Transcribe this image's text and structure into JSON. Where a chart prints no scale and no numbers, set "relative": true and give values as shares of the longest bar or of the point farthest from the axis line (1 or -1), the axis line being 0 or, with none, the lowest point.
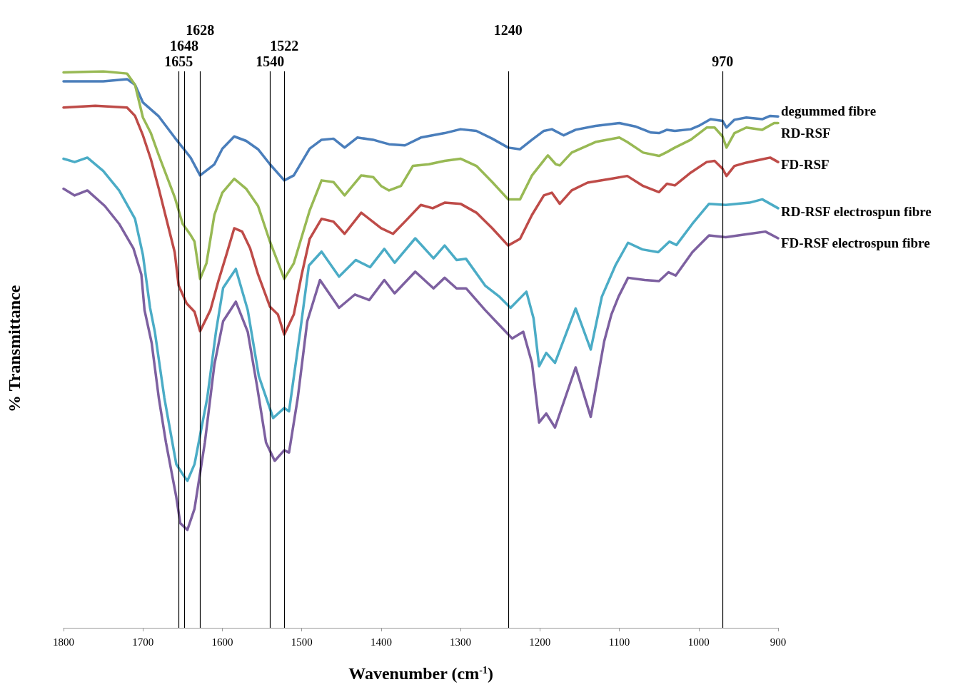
{
  "chart_data": {
    "type": "line",
    "relative": true,
    "xlabel": "Wavenumber (cm$^{-1}$)",
    "ylabel": "% Transmittance",
    "xlim": [
      1800,
      900
    ],
    "xticks": [
      1800,
      1700,
      1600,
      1500,
      1400,
      1300,
      1200,
      1100,
      1000,
      900
    ],
    "series": [
      {
        "name": "degummed fibre",
        "color": "#4a7ebb",
        "x": [
          1800,
          1750,
          1720,
          1710,
          1700,
          1680,
          1660,
          1640,
          1628,
          1610,
          1600,
          1585,
          1570,
          1555,
          1540,
          1522,
          1510,
          1490,
          1475,
          1460,
          1446,
          1430,
          1410,
          1400,
          1390,
          1370,
          1350,
          1320,
          1300,
          1280,
          1260,
          1240,
          1225,
          1210,
          1195,
          1185,
          1170,
          1155,
          1130,
          1100,
          1080,
          1060,
          1050,
          1040,
          1030,
          1010,
          1000,
          985,
          970,
          965,
          955,
          940,
          920,
          910,
          900
        ],
        "values": [
          0.982,
          0.982,
          0.986,
          0.976,
          0.944,
          0.919,
          0.881,
          0.845,
          0.813,
          0.833,
          0.861,
          0.883,
          0.875,
          0.86,
          0.833,
          0.804,
          0.813,
          0.861,
          0.877,
          0.879,
          0.863,
          0.881,
          0.877,
          0.873,
          0.869,
          0.867,
          0.881,
          0.889,
          0.896,
          0.893,
          0.879,
          0.863,
          0.86,
          0.877,
          0.893,
          0.896,
          0.885,
          0.895,
          0.902,
          0.907,
          0.901,
          0.89,
          0.889,
          0.895,
          0.893,
          0.896,
          0.902,
          0.914,
          0.911,
          0.899,
          0.913,
          0.917,
          0.914,
          0.92,
          0.919
        ]
      },
      {
        "name": "RD-RSF",
        "color": "#98b954",
        "x": [
          1800,
          1750,
          1720,
          1710,
          1700,
          1690,
          1680,
          1660,
          1650,
          1640,
          1635,
          1628,
          1620,
          1610,
          1600,
          1585,
          1570,
          1555,
          1540,
          1522,
          1510,
          1490,
          1475,
          1460,
          1446,
          1425,
          1410,
          1400,
          1390,
          1375,
          1360,
          1340,
          1320,
          1300,
          1280,
          1260,
          1240,
          1225,
          1210,
          1190,
          1180,
          1175,
          1160,
          1130,
          1100,
          1090,
          1070,
          1050,
          1040,
          1030,
          1010,
          990,
          980,
          970,
          965,
          955,
          940,
          920,
          905,
          900
        ],
        "values": [
          0.998,
          1.0,
          0.996,
          0.976,
          0.917,
          0.889,
          0.849,
          0.774,
          0.726,
          0.706,
          0.694,
          0.627,
          0.655,
          0.742,
          0.782,
          0.807,
          0.789,
          0.758,
          0.694,
          0.627,
          0.655,
          0.75,
          0.804,
          0.801,
          0.777,
          0.813,
          0.81,
          0.794,
          0.786,
          0.794,
          0.83,
          0.833,
          0.839,
          0.843,
          0.83,
          0.801,
          0.77,
          0.77,
          0.813,
          0.849,
          0.833,
          0.831,
          0.854,
          0.873,
          0.881,
          0.873,
          0.854,
          0.848,
          0.855,
          0.863,
          0.877,
          0.899,
          0.899,
          0.883,
          0.863,
          0.889,
          0.899,
          0.895,
          0.907,
          0.907
        ]
      },
      {
        "name": "FD-RSF",
        "color": "#be4b48",
        "x": [
          1800,
          1760,
          1720,
          1710,
          1700,
          1690,
          1680,
          1660,
          1655,
          1645,
          1635,
          1628,
          1615,
          1605,
          1595,
          1585,
          1575,
          1565,
          1555,
          1540,
          1530,
          1522,
          1510,
          1500,
          1490,
          1475,
          1460,
          1446,
          1425,
          1400,
          1385,
          1370,
          1350,
          1335,
          1320,
          1300,
          1280,
          1260,
          1240,
          1225,
          1210,
          1195,
          1185,
          1175,
          1160,
          1140,
          1110,
          1090,
          1070,
          1050,
          1040,
          1030,
          1010,
          990,
          980,
          970,
          965,
          955,
          940,
          920,
          910,
          900
        ],
        "values": [
          0.935,
          0.938,
          0.935,
          0.92,
          0.885,
          0.842,
          0.789,
          0.675,
          0.615,
          0.583,
          0.568,
          0.533,
          0.571,
          0.623,
          0.67,
          0.718,
          0.712,
          0.682,
          0.635,
          0.577,
          0.563,
          0.527,
          0.563,
          0.635,
          0.699,
          0.735,
          0.73,
          0.708,
          0.746,
          0.718,
          0.708,
          0.73,
          0.76,
          0.754,
          0.764,
          0.762,
          0.746,
          0.718,
          0.687,
          0.699,
          0.742,
          0.777,
          0.782,
          0.762,
          0.786,
          0.8,
          0.807,
          0.812,
          0.794,
          0.783,
          0.798,
          0.795,
          0.818,
          0.837,
          0.839,
          0.825,
          0.812,
          0.83,
          0.836,
          0.842,
          0.845,
          0.837
        ]
      },
      {
        "name": "RD-RSF electrospun fibre",
        "color": "#4bacc6",
        "x": [
          1800,
          1786,
          1770,
          1750,
          1730,
          1710,
          1700,
          1691,
          1685,
          1673,
          1658,
          1649,
          1644,
          1635,
          1619,
          1608,
          1599,
          1583,
          1568,
          1554,
          1536,
          1522,
          1516,
          1502,
          1491,
          1475,
          1453,
          1432,
          1414,
          1396,
          1383,
          1357,
          1334,
          1320,
          1305,
          1293,
          1269,
          1251,
          1237,
          1217,
          1208,
          1201,
          1192,
          1181,
          1155,
          1136,
          1122,
          1105,
          1089,
          1071,
          1051,
          1037,
          1028,
          1008,
          987,
          966,
          936,
          920,
          900
        ],
        "values": [
          0.843,
          0.837,
          0.845,
          0.821,
          0.786,
          0.735,
          0.67,
          0.575,
          0.532,
          0.413,
          0.294,
          0.274,
          0.264,
          0.294,
          0.413,
          0.532,
          0.611,
          0.645,
          0.571,
          0.452,
          0.377,
          0.395,
          0.389,
          0.532,
          0.651,
          0.676,
          0.631,
          0.661,
          0.648,
          0.681,
          0.656,
          0.7,
          0.664,
          0.687,
          0.661,
          0.663,
          0.615,
          0.595,
          0.575,
          0.604,
          0.556,
          0.47,
          0.494,
          0.476,
          0.574,
          0.5,
          0.595,
          0.651,
          0.692,
          0.68,
          0.675,
          0.694,
          0.688,
          0.726,
          0.762,
          0.76,
          0.764,
          0.77,
          0.754
        ]
      },
      {
        "name": "FD-RSF electrospun fibre",
        "color": "#7d60a0",
        "x": [
          1800,
          1786,
          1770,
          1748,
          1730,
          1712,
          1702,
          1698,
          1689,
          1680,
          1671,
          1658,
          1653,
          1644,
          1635,
          1622,
          1610,
          1599,
          1583,
          1568,
          1556,
          1545,
          1534,
          1522,
          1516,
          1505,
          1493,
          1477,
          1453,
          1433,
          1415,
          1396,
          1383,
          1357,
          1334,
          1320,
          1305,
          1293,
          1269,
          1251,
          1235,
          1221,
          1210,
          1201,
          1192,
          1181,
          1155,
          1136,
          1119,
          1110,
          1101,
          1089,
          1068,
          1050,
          1038,
          1029,
          1008,
          987,
          966,
          936,
          916,
          900
        ],
        "values": [
          0.789,
          0.777,
          0.786,
          0.758,
          0.726,
          0.682,
          0.635,
          0.571,
          0.512,
          0.413,
          0.333,
          0.235,
          0.188,
          0.176,
          0.214,
          0.333,
          0.473,
          0.551,
          0.586,
          0.532,
          0.432,
          0.333,
          0.3,
          0.319,
          0.315,
          0.413,
          0.551,
          0.625,
          0.575,
          0.599,
          0.589,
          0.625,
          0.601,
          0.64,
          0.61,
          0.629,
          0.61,
          0.61,
          0.571,
          0.544,
          0.52,
          0.532,
          0.476,
          0.369,
          0.385,
          0.36,
          0.468,
          0.379,
          0.515,
          0.563,
          0.595,
          0.629,
          0.625,
          0.623,
          0.639,
          0.633,
          0.675,
          0.705,
          0.702,
          0.708,
          0.712,
          0.7
        ]
      }
    ],
    "ref_lines": [
      {
        "axis": "x",
        "value": 1655,
        "label": "1655"
      },
      {
        "axis": "x",
        "value": 1648,
        "label": "1648"
      },
      {
        "axis": "x",
        "value": 1628,
        "label": "1628"
      },
      {
        "axis": "x",
        "value": 1540,
        "label": "1540"
      },
      {
        "axis": "x",
        "value": 1522,
        "label": "1522"
      },
      {
        "axis": "x",
        "value": 1240,
        "label": "1240"
      },
      {
        "axis": "x",
        "value": 970,
        "label": "970"
      }
    ]
  }
}
